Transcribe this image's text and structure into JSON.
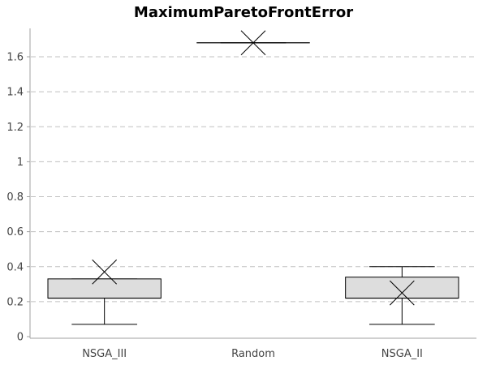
{
  "chart_data": {
    "type": "box",
    "title": "MaximumParetoFrontError",
    "xlabel": "",
    "ylabel": "",
    "ylim": [
      0,
      1.75
    ],
    "yticks": [
      0,
      0.2,
      0.4,
      0.6,
      0.8,
      1,
      1.2,
      1.4,
      1.6
    ],
    "ytick_labels": [
      "0",
      "0.2",
      "0.4",
      "0.6",
      "0.8",
      "1",
      "1.2",
      "1.4",
      "1.6"
    ],
    "grid": "horizontal dashed",
    "categories": [
      "NSGA_III",
      "Random",
      "NSGA_II"
    ],
    "boxes": [
      {
        "category": "NSGA_III",
        "whisker_low": 0.07,
        "q1": 0.22,
        "median": 0.22,
        "q3": 0.33,
        "whisker_high": 0.33,
        "mean": 0.37
      },
      {
        "category": "Random",
        "whisker_low": 1.68,
        "q1": 1.68,
        "median": 1.68,
        "q3": 1.68,
        "whisker_high": 1.68,
        "mean": 1.68
      },
      {
        "category": "NSGA_II",
        "whisker_low": 0.07,
        "q1": 0.22,
        "median": 0.22,
        "q3": 0.34,
        "whisker_high": 0.4,
        "mean": 0.25
      }
    ],
    "colors": {
      "box_fill": "#dddddd",
      "stroke": "#000000",
      "grid": "#c0c0c0",
      "axis": "#a0a0a0"
    }
  }
}
